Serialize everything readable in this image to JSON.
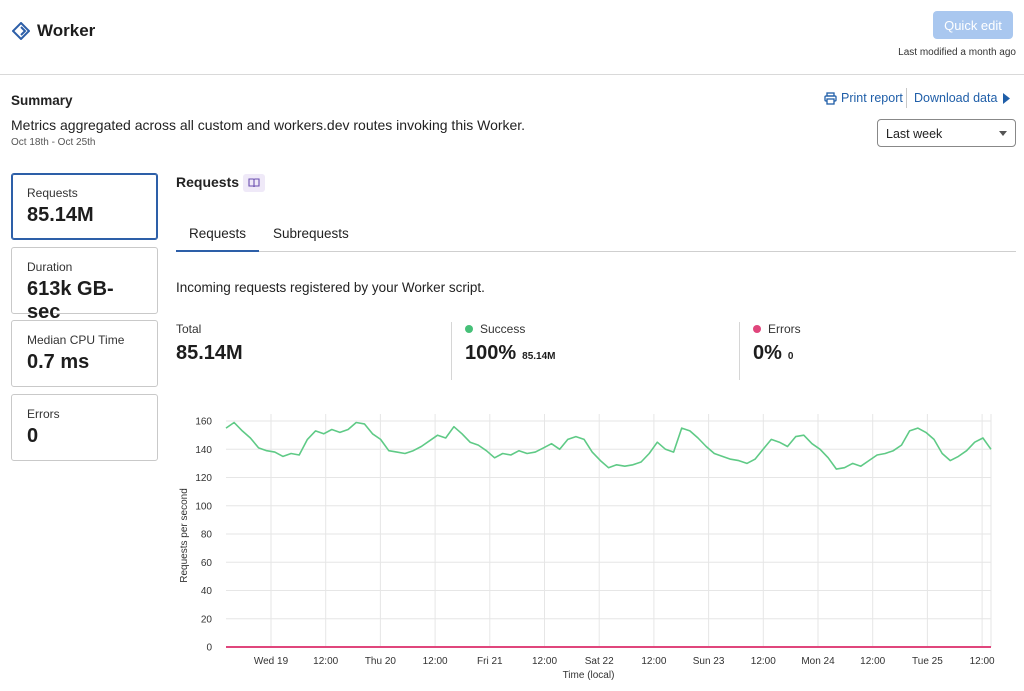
{
  "header": {
    "title": "Worker",
    "quick_edit_label": "Quick edit",
    "last_modified": "Last modified a month ago",
    "icon": "worker-diamond-icon"
  },
  "summary": {
    "title": "Summary",
    "description": "Metrics aggregated across all custom and workers.dev routes invoking this Worker.",
    "dates": "Oct 18th - Oct 25th",
    "print_report": "Print report",
    "download_data": "Download data",
    "range_selected": "Last week"
  },
  "cards": [
    {
      "label": "Requests",
      "value": "85.14M"
    },
    {
      "label": "Duration",
      "value": "613k GB-sec"
    },
    {
      "label": "Median CPU Time",
      "value": "0.7 ms"
    },
    {
      "label": "Errors",
      "value": "0"
    }
  ],
  "main": {
    "heading": "Requests",
    "tabs": [
      "Requests",
      "Subrequests"
    ],
    "description": "Incoming requests registered by your Worker script.",
    "stats": {
      "total_label": "Total",
      "total_value": "85.14M",
      "success_label": "Success",
      "success_value": "100%",
      "success_sub": "85.14M",
      "errors_label": "Errors",
      "errors_value": "0%",
      "errors_sub": "0"
    }
  },
  "colors": {
    "accent": "#2d5fa8",
    "success": "#46c078",
    "error": "#e0467c",
    "success_line": "#5fca86"
  },
  "chart_data": {
    "type": "line",
    "xlabel": "Time (local)",
    "ylabel": "Requests per second",
    "ylim": [
      0,
      165
    ],
    "yticks": [
      0,
      20,
      40,
      60,
      80,
      100,
      120,
      140,
      160
    ],
    "xticks": [
      "Wed 19",
      "12:00",
      "Thu 20",
      "12:00",
      "Fri 21",
      "12:00",
      "Sat 22",
      "12:00",
      "Sun 23",
      "12:00",
      "Mon 24",
      "12:00",
      "Tue 25",
      "12:00"
    ],
    "grid": true,
    "series": [
      {
        "name": "Success",
        "values": [
          155,
          159,
          153,
          148,
          141,
          139,
          138,
          135,
          137,
          136,
          147,
          153,
          151,
          154,
          152,
          154,
          159,
          158,
          151,
          147,
          139,
          138,
          137,
          139,
          142,
          146,
          150,
          148,
          156,
          151,
          145,
          143,
          139,
          134,
          137,
          136,
          139,
          137,
          138,
          141,
          144,
          140,
          147,
          149,
          147,
          138,
          132,
          127,
          129,
          128,
          129,
          131,
          137,
          145,
          140,
          138,
          155,
          153,
          148,
          142,
          137,
          135,
          133,
          132,
          130,
          133,
          140,
          147,
          145,
          142,
          149,
          150,
          144,
          140,
          134,
          126,
          127,
          130,
          128,
          132,
          136,
          137,
          139,
          143,
          153,
          155,
          152,
          147,
          137,
          132,
          135,
          139,
          145,
          148,
          140
        ]
      },
      {
        "name": "Errors",
        "values": [
          0,
          0,
          0,
          0,
          0,
          0,
          0,
          0,
          0,
          0,
          0,
          0,
          0,
          0,
          0,
          0,
          0,
          0,
          0,
          0,
          0,
          0,
          0,
          0,
          0,
          0,
          0,
          0,
          0,
          0,
          0,
          0,
          0,
          0,
          0,
          0,
          0,
          0,
          0,
          0,
          0,
          0,
          0,
          0,
          0,
          0,
          0,
          0,
          0,
          0,
          0,
          0,
          0,
          0,
          0,
          0,
          0,
          0,
          0,
          0,
          0,
          0,
          0,
          0,
          0,
          0,
          0,
          0,
          0,
          0,
          0,
          0,
          0,
          0,
          0,
          0,
          0,
          0,
          0,
          0,
          0,
          0,
          0,
          0,
          0,
          0,
          0,
          0,
          0,
          0,
          0,
          0,
          0,
          0,
          0
        ]
      }
    ]
  }
}
